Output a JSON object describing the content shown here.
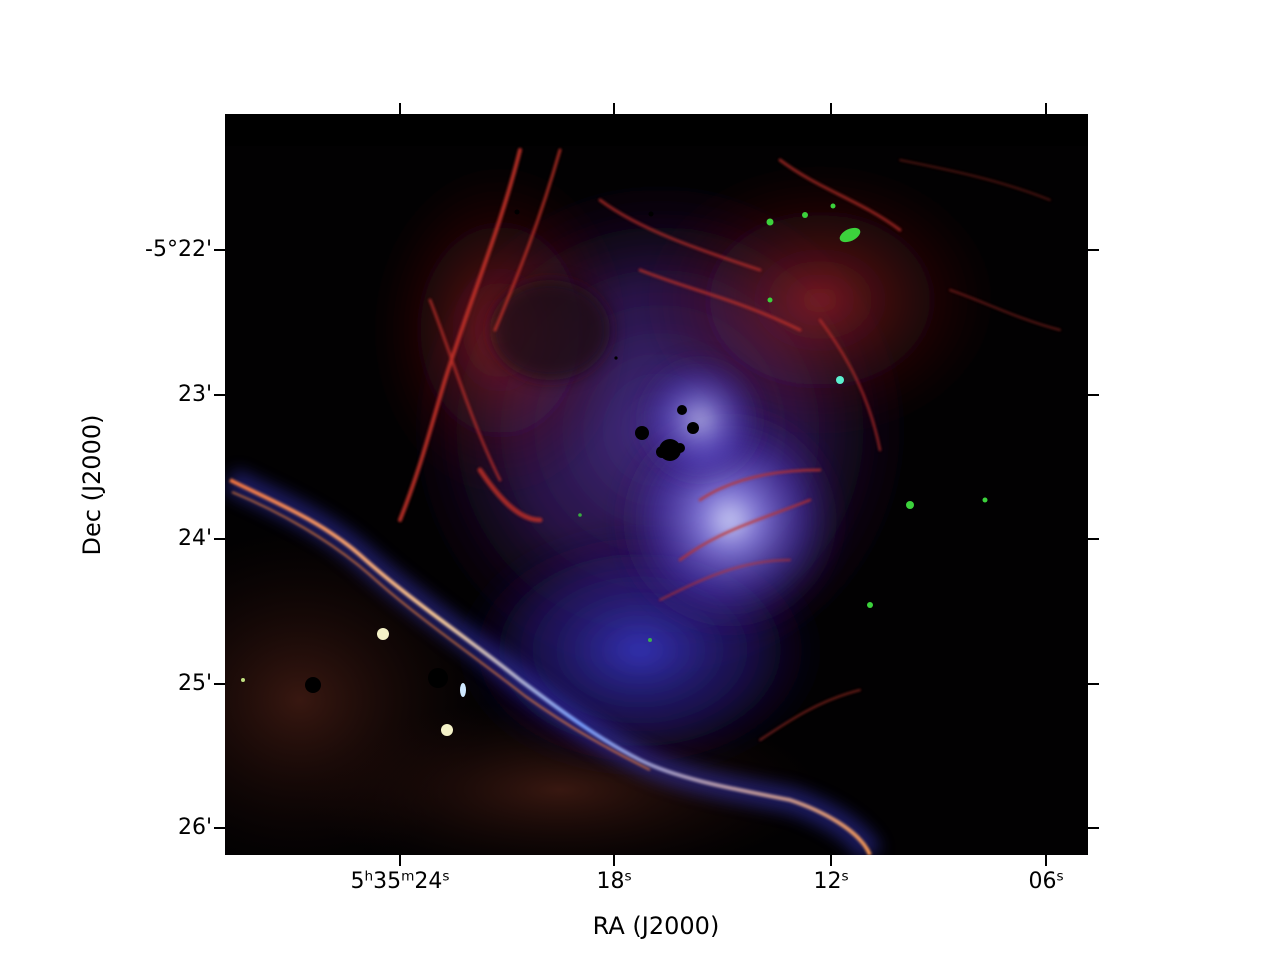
{
  "plot": {
    "x_axis_title": "RA (J2000)",
    "y_axis_title": "Dec (J2000)",
    "x_ticks": [
      {
        "hms": "5h35m24s",
        "h": "5",
        "m": "35",
        "s": "24",
        "h_unit": "h",
        "m_unit": "m",
        "s_unit": "s"
      },
      {
        "hms": "18s",
        "s": "18",
        "s_unit": "s"
      },
      {
        "hms": "12s",
        "s": "12",
        "s_unit": "s"
      },
      {
        "hms": "06s",
        "s": "06",
        "s_unit": "s"
      }
    ],
    "y_ticks": [
      {
        "label": "-5°22'"
      },
      {
        "label": "23'"
      },
      {
        "label": "24'"
      },
      {
        "label": "25'"
      },
      {
        "label": "26'"
      }
    ]
  },
  "image": {
    "subject": "false-color nebula image",
    "colors": {
      "background": "#000000",
      "nebula_red": "#c03028",
      "nebula_blue": "#3a3ad0",
      "nebula_green": "#3cd23c",
      "ridge_orange": "#ff9a40"
    }
  }
}
